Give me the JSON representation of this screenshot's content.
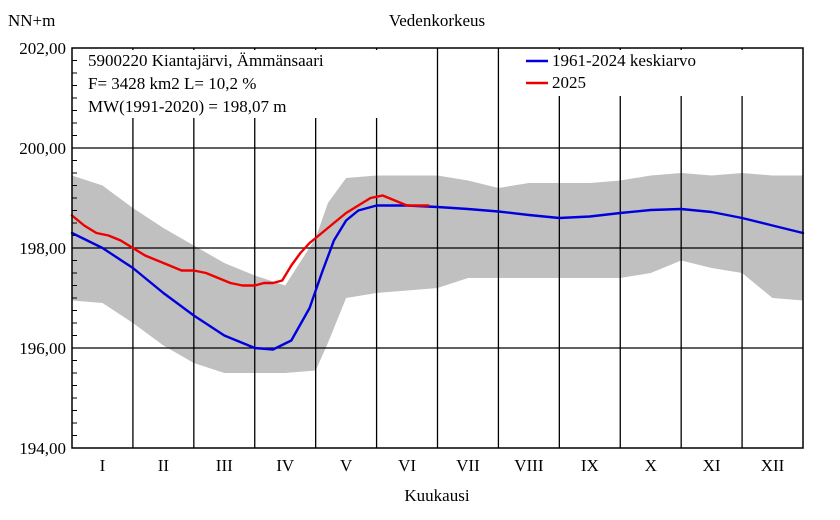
{
  "chart_data": {
    "type": "line",
    "title": "Vedenkorkeus",
    "ylabel": "NN+m",
    "xlabel": "Kuukausi",
    "ylim": [
      194,
      202
    ],
    "yticks": [
      "194,00",
      "196,00",
      "198,00",
      "200,00",
      "202,00"
    ],
    "ytick_values": [
      194,
      196,
      198,
      200,
      202
    ],
    "xlim": [
      0,
      12
    ],
    "categories": [
      "I",
      "II",
      "III",
      "IV",
      "V",
      "VI",
      "VII",
      "VIII",
      "IX",
      "X",
      "XI",
      "XII"
    ],
    "info_lines": [
      "5900220 Kiantajärvi, Ämmänsaari",
      "F=   3428 km2 L=  10,2 %",
      "MW(1991-2020) = 198,07 m"
    ],
    "grid": true,
    "legend_position": "top-right",
    "band": {
      "color": "#c0c0c0",
      "x": [
        0,
        0.5,
        1,
        1.5,
        2,
        2.5,
        3,
        3.5,
        4,
        4.2,
        4.5,
        5,
        5.5,
        6,
        6.5,
        7,
        7.5,
        8,
        8.5,
        9,
        9.5,
        10,
        10.5,
        11,
        11.5,
        12
      ],
      "upper": [
        199.45,
        199.25,
        198.8,
        198.4,
        198.05,
        197.7,
        197.45,
        197.25,
        198.2,
        198.9,
        199.4,
        199.45,
        199.45,
        199.45,
        199.35,
        199.2,
        199.3,
        199.3,
        199.3,
        199.35,
        199.45,
        199.5,
        199.45,
        199.5,
        199.45,
        199.45
      ],
      "lower": [
        196.95,
        196.9,
        196.5,
        196.05,
        195.7,
        195.5,
        195.5,
        195.5,
        195.55,
        196.1,
        197.0,
        197.1,
        197.15,
        197.2,
        197.4,
        197.4,
        197.4,
        197.4,
        197.4,
        197.4,
        197.5,
        197.75,
        197.6,
        197.5,
        197.0,
        196.95
      ]
    },
    "series": [
      {
        "name": "1961-2024 keskiarvo",
        "color": "#0000dd",
        "x": [
          0,
          0.5,
          1,
          1.5,
          2,
          2.5,
          3,
          3.3,
          3.6,
          3.9,
          4.1,
          4.3,
          4.5,
          4.7,
          5,
          5.5,
          6,
          6.5,
          7,
          7.5,
          8,
          8.5,
          9,
          9.5,
          10,
          10.5,
          11,
          11.5,
          12
        ],
        "values": [
          198.3,
          198.0,
          197.6,
          197.1,
          196.65,
          196.25,
          196.0,
          195.97,
          196.15,
          196.8,
          197.5,
          198.15,
          198.55,
          198.75,
          198.85,
          198.85,
          198.82,
          198.78,
          198.73,
          198.66,
          198.6,
          198.63,
          198.7,
          198.76,
          198.78,
          198.72,
          198.6,
          198.45,
          198.3
        ]
      },
      {
        "name": "2025",
        "color": "#ee0000",
        "x": [
          0,
          0.2,
          0.4,
          0.6,
          0.8,
          1.0,
          1.2,
          1.4,
          1.6,
          1.8,
          2.0,
          2.2,
          2.4,
          2.6,
          2.8,
          3.0,
          3.15,
          3.3,
          3.45,
          3.6,
          3.75,
          3.9,
          4.1,
          4.3,
          4.5,
          4.7,
          4.9,
          5.1,
          5.3,
          5.5,
          5.7,
          5.85
        ],
        "values": [
          198.65,
          198.45,
          198.3,
          198.25,
          198.15,
          198.0,
          197.85,
          197.75,
          197.65,
          197.55,
          197.55,
          197.5,
          197.4,
          197.3,
          197.25,
          197.25,
          197.3,
          197.3,
          197.35,
          197.65,
          197.9,
          198.1,
          198.3,
          198.5,
          198.7,
          198.85,
          199.0,
          199.05,
          198.95,
          198.85,
          198.85,
          198.85
        ]
      }
    ]
  }
}
